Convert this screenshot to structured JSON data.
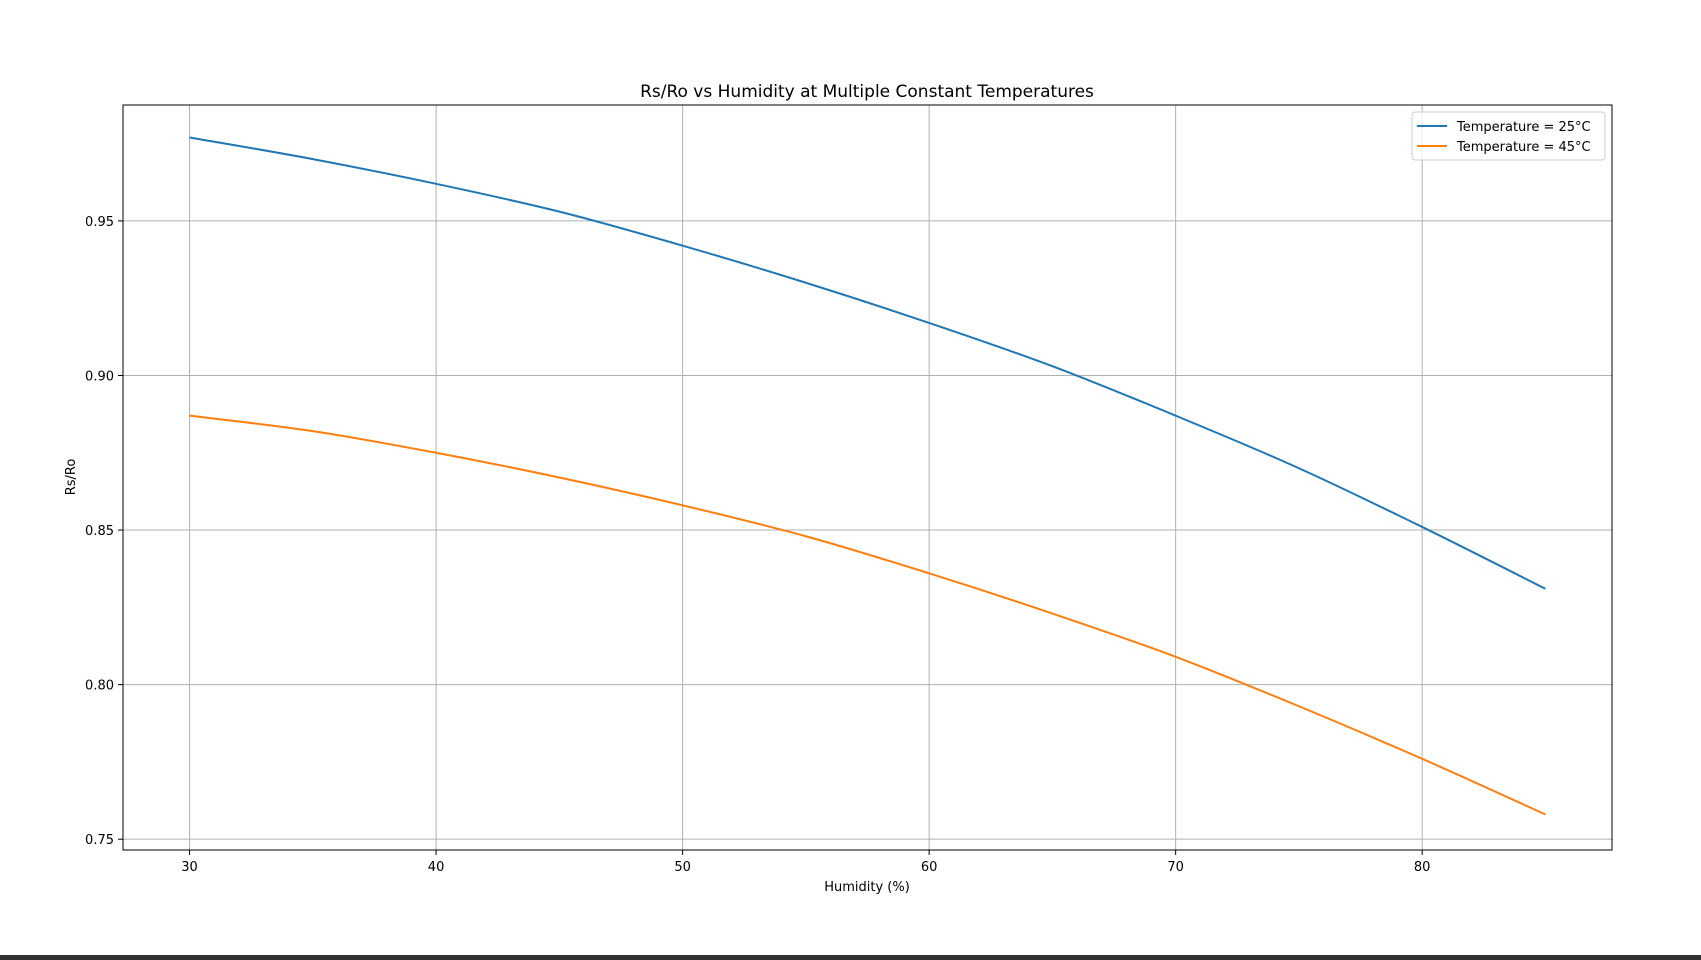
{
  "chart_data": {
    "type": "line",
    "title": "Rs/Ro vs Humidity at Multiple Constant Temperatures",
    "xlabel": "Humidity (%)",
    "ylabel": "Rs/Ro",
    "xlim": [
      27.3,
      87.7
    ],
    "ylim": [
      0.7465,
      0.9875
    ],
    "xticks": [
      30,
      40,
      50,
      60,
      70,
      80
    ],
    "yticks": [
      0.75,
      0.8,
      0.85,
      0.9,
      0.95
    ],
    "ytick_labels": [
      "0.75",
      "0.80",
      "0.85",
      "0.90",
      "0.95"
    ],
    "grid": true,
    "legend_position": "top-right",
    "x": [
      30,
      35,
      40,
      45,
      50,
      55,
      60,
      65,
      70,
      75,
      80,
      85
    ],
    "series": [
      {
        "name": "Temperature = 25°C",
        "color": "#1f77b4",
        "values": [
          0.977,
          0.97,
          0.962,
          0.953,
          0.942,
          0.93,
          0.917,
          0.903,
          0.887,
          0.87,
          0.851,
          0.831
        ]
      },
      {
        "name": "Temperature = 45°C",
        "color": "#ff7f0e",
        "values": [
          0.887,
          0.882,
          0.875,
          0.867,
          0.858,
          0.848,
          0.836,
          0.823,
          0.809,
          0.793,
          0.776,
          0.758
        ]
      }
    ]
  }
}
